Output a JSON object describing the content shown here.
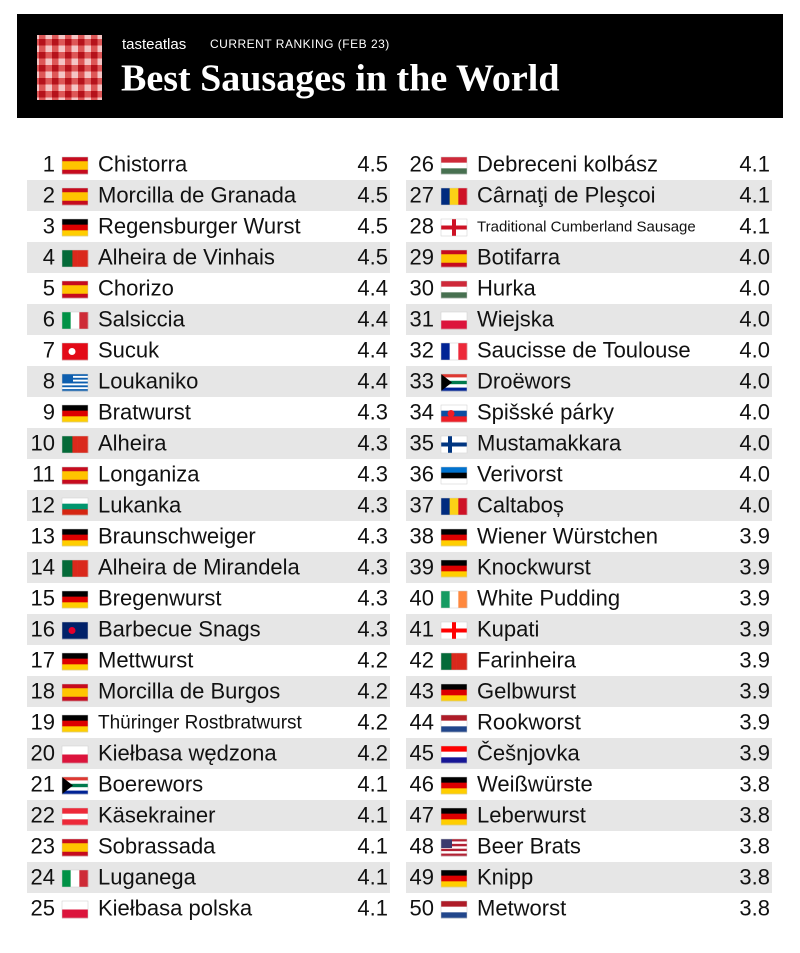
{
  "header": {
    "brand": "tasteatlas",
    "subtitle": "CURRENT RANKING (FEB 23)",
    "title": "Best Sausages in the World"
  },
  "table": {
    "rows": [
      [
        1,
        "Chistorra",
        "4.5"
      ],
      [
        2,
        "Morcilla de Granada",
        "4.5"
      ],
      [
        3,
        "Regensburger Wurst",
        "4.5"
      ],
      [
        4,
        "Alheira de Vinhais",
        "4.5"
      ],
      [
        5,
        "Chorizo",
        "4.4"
      ],
      [
        6,
        "Salsiccia",
        "4.4"
      ],
      [
        7,
        "Sucuk",
        "4.4"
      ],
      [
        8,
        "Loukaniko",
        "4.4"
      ],
      [
        9,
        "Bratwurst",
        "4.3"
      ],
      [
        10,
        "Alheira",
        "4.3"
      ],
      [
        11,
        "Longaniza",
        "4.3"
      ],
      [
        12,
        "Lukanka",
        "4.3"
      ],
      [
        13,
        "Braunschweiger",
        "4.3"
      ],
      [
        14,
        "Alheira de Mirandela",
        "4.3"
      ],
      [
        15,
        "Bregenwurst",
        "4.3"
      ],
      [
        16,
        "Barbecue Snags",
        "4.3"
      ],
      [
        17,
        "Mettwurst",
        "4.2"
      ],
      [
        18,
        "Morcilla de Burgos",
        "4.2"
      ],
      [
        19,
        "Thüringer Rostbratwurst",
        "4.2"
      ],
      [
        20,
        "Kiełbasa wędzona",
        "4.2"
      ],
      [
        21,
        "Boerewors",
        "4.1"
      ],
      [
        22,
        "Käsekrainer",
        "4.1"
      ],
      [
        23,
        "Sobrassada",
        "4.1"
      ],
      [
        24,
        "Luganega",
        "4.1"
      ],
      [
        25,
        "Kiełbasa polska",
        "4.1"
      ],
      [
        26,
        "Debreceni kolbász",
        "4.1"
      ],
      [
        27,
        "Cârnaţi de Pleşcoi",
        "4.1"
      ],
      [
        28,
        "Traditional Cumberland Sausage",
        "4.1"
      ],
      [
        29,
        "Botifarra",
        "4.0"
      ],
      [
        30,
        "Hurka",
        "4.0"
      ],
      [
        31,
        "Wiejska",
        "4.0"
      ],
      [
        32,
        "Saucisse de Toulouse",
        "4.0"
      ],
      [
        33,
        "Droëwors",
        "4.0"
      ],
      [
        34,
        "Spišské párky",
        "4.0"
      ],
      [
        35,
        "Mustamakkara",
        "4.0"
      ],
      [
        36,
        "Verivorst",
        "4.0"
      ],
      [
        37,
        "Caltaboș",
        "4.0"
      ],
      [
        38,
        "Wiener Würstchen",
        "3.9"
      ],
      [
        39,
        "Knockwurst",
        "3.9"
      ],
      [
        40,
        "White Pudding",
        "3.9"
      ],
      [
        41,
        "Kupati",
        "3.9"
      ],
      [
        42,
        "Farinheira",
        "3.9"
      ],
      [
        43,
        "Gelbwurst",
        "3.9"
      ],
      [
        44,
        "Rookworst",
        "3.9"
      ],
      [
        45,
        "Češnjovka",
        "3.9"
      ],
      [
        46,
        "Weißwürste",
        "3.8"
      ],
      [
        47,
        "Leberwurst",
        "3.8"
      ],
      [
        48,
        "Beer Brats",
        "3.8"
      ],
      [
        49,
        "Knipp",
        "3.8"
      ],
      [
        50,
        "Metworst",
        "3.8"
      ]
    ]
  }
}
